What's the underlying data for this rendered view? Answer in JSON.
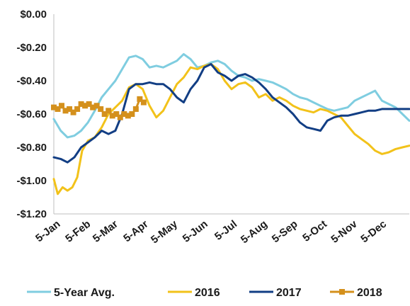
{
  "chart_data": {
    "type": "line",
    "x_ticks": [
      "5-Jan",
      "5-Feb",
      "5-Mar",
      "5-Apr",
      "5-May",
      "5-Jun",
      "5-Jul",
      "5-Aug",
      "5-Sep",
      "5-Oct",
      "5-Nov",
      "5-Dec"
    ],
    "y_ticks": [
      "$0.00",
      "-$0.20",
      "-$0.40",
      "-$0.60",
      "-$0.80",
      "-$1.00",
      "-$1.20"
    ],
    "ylim": [
      -1.2,
      0
    ],
    "xlim": [
      1,
      365
    ],
    "grid": false,
    "legend_position": "bottom",
    "series": [
      {
        "name": "5-Year Avg.",
        "color": "#7fcde0",
        "marker": "none",
        "x": [
          1,
          8,
          15,
          22,
          29,
          36,
          43,
          50,
          57,
          64,
          71,
          78,
          85,
          92,
          99,
          106,
          113,
          120,
          127,
          134,
          141,
          148,
          155,
          162,
          169,
          176,
          183,
          190,
          197,
          204,
          211,
          218,
          225,
          232,
          239,
          246,
          253,
          260,
          267,
          274,
          281,
          288,
          295,
          302,
          309,
          316,
          323,
          330,
          337,
          344,
          351,
          358,
          365
        ],
        "y": [
          -0.63,
          -0.7,
          -0.74,
          -0.73,
          -0.7,
          -0.65,
          -0.58,
          -0.5,
          -0.45,
          -0.4,
          -0.33,
          -0.26,
          -0.25,
          -0.27,
          -0.32,
          -0.31,
          -0.32,
          -0.3,
          -0.28,
          -0.24,
          -0.27,
          -0.32,
          -0.31,
          -0.29,
          -0.28,
          -0.3,
          -0.34,
          -0.37,
          -0.38,
          -0.4,
          -0.39,
          -0.4,
          -0.41,
          -0.43,
          -0.45,
          -0.48,
          -0.5,
          -0.51,
          -0.53,
          -0.55,
          -0.57,
          -0.58,
          -0.57,
          -0.56,
          -0.52,
          -0.5,
          -0.48,
          -0.46,
          -0.52,
          -0.54,
          -0.56,
          -0.6,
          -0.64
        ]
      },
      {
        "name": "2016",
        "color": "#f2c21a",
        "marker": "none",
        "x": [
          1,
          5,
          10,
          15,
          20,
          25,
          30,
          36,
          43,
          50,
          57,
          64,
          71,
          78,
          85,
          92,
          99,
          106,
          113,
          120,
          127,
          134,
          141,
          148,
          155,
          162,
          169,
          176,
          183,
          190,
          197,
          204,
          211,
          218,
          225,
          232,
          239,
          246,
          253,
          260,
          267,
          274,
          281,
          288,
          295,
          302,
          309,
          316,
          323,
          330,
          337,
          344,
          351,
          358,
          365
        ],
        "y": [
          -0.99,
          -1.08,
          -1.04,
          -1.06,
          -1.04,
          -0.98,
          -0.82,
          -0.76,
          -0.74,
          -0.68,
          -0.6,
          -0.56,
          -0.52,
          -0.44,
          -0.42,
          -0.45,
          -0.55,
          -0.62,
          -0.58,
          -0.5,
          -0.42,
          -0.38,
          -0.32,
          -0.33,
          -0.31,
          -0.3,
          -0.33,
          -0.4,
          -0.45,
          -0.42,
          -0.41,
          -0.44,
          -0.5,
          -0.48,
          -0.52,
          -0.5,
          -0.52,
          -0.55,
          -0.57,
          -0.58,
          -0.59,
          -0.57,
          -0.58,
          -0.6,
          -0.62,
          -0.67,
          -0.72,
          -0.75,
          -0.78,
          -0.82,
          -0.84,
          -0.83,
          -0.81,
          -0.8,
          -0.79
        ]
      },
      {
        "name": "2017",
        "color": "#123e84",
        "marker": "none",
        "x": [
          1,
          8,
          15,
          22,
          29,
          36,
          43,
          50,
          57,
          64,
          71,
          78,
          85,
          92,
          99,
          106,
          113,
          120,
          127,
          134,
          141,
          148,
          155,
          162,
          169,
          176,
          183,
          190,
          197,
          204,
          211,
          218,
          225,
          232,
          239,
          246,
          253,
          260,
          267,
          274,
          281,
          288,
          295,
          302,
          309,
          316,
          323,
          330,
          337,
          344,
          351,
          358,
          365
        ],
        "y": [
          -0.86,
          -0.87,
          -0.89,
          -0.86,
          -0.8,
          -0.77,
          -0.74,
          -0.7,
          -0.72,
          -0.7,
          -0.6,
          -0.45,
          -0.42,
          -0.42,
          -0.41,
          -0.42,
          -0.42,
          -0.45,
          -0.5,
          -0.53,
          -0.45,
          -0.4,
          -0.32,
          -0.3,
          -0.35,
          -0.37,
          -0.4,
          -0.37,
          -0.36,
          -0.38,
          -0.41,
          -0.45,
          -0.5,
          -0.53,
          -0.56,
          -0.6,
          -0.65,
          -0.68,
          -0.69,
          -0.7,
          -0.64,
          -0.62,
          -0.61,
          -0.61,
          -0.6,
          -0.59,
          -0.58,
          -0.58,
          -0.57,
          -0.57,
          -0.57,
          -0.57,
          -0.57
        ]
      },
      {
        "name": "2018",
        "color": "#d4901c",
        "marker": "square",
        "x": [
          1,
          5,
          9,
          13,
          17,
          21,
          25,
          29,
          33,
          37,
          41,
          45,
          49,
          53,
          57,
          61,
          65,
          69,
          73,
          77,
          81,
          85,
          89,
          93
        ],
        "y": [
          -0.56,
          -0.57,
          -0.55,
          -0.58,
          -0.57,
          -0.59,
          -0.57,
          -0.54,
          -0.55,
          -0.54,
          -0.56,
          -0.55,
          -0.57,
          -0.6,
          -0.58,
          -0.61,
          -0.6,
          -0.62,
          -0.6,
          -0.61,
          -0.6,
          -0.57,
          -0.51,
          -0.53
        ]
      }
    ]
  }
}
